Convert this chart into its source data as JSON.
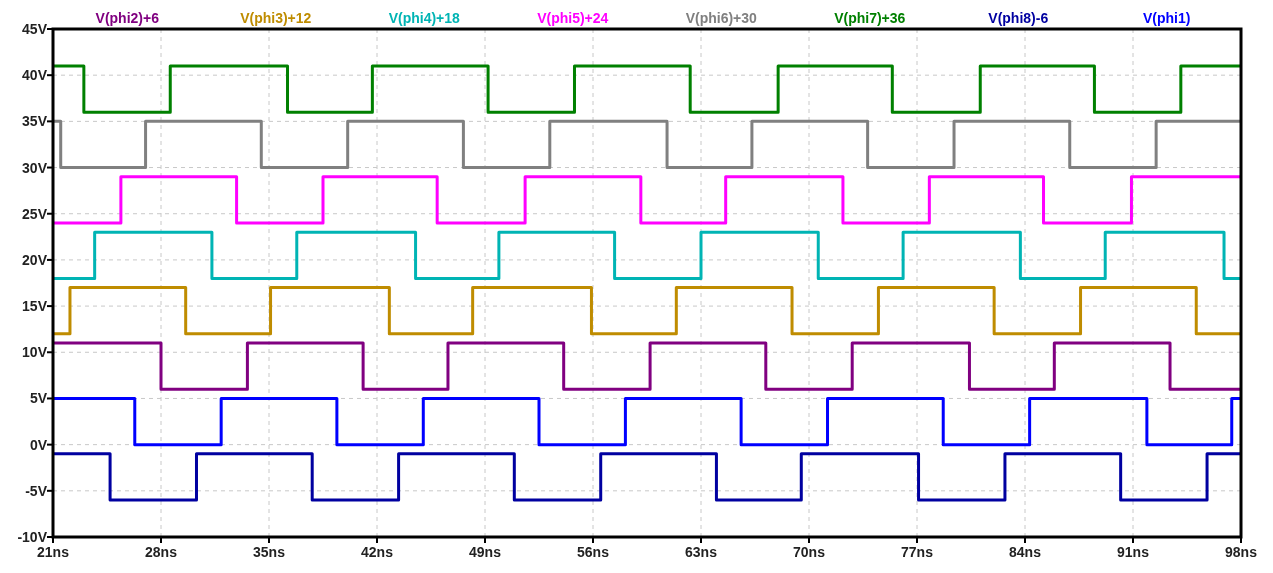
{
  "chart_data": {
    "type": "step",
    "xlim": [
      21,
      98
    ],
    "ylim": [
      -10,
      45
    ],
    "xticks": [
      {
        "value": 21,
        "label": "21ns"
      },
      {
        "value": 28,
        "label": "28ns"
      },
      {
        "value": 35,
        "label": "35ns"
      },
      {
        "value": 42,
        "label": "42ns"
      },
      {
        "value": 49,
        "label": "49ns"
      },
      {
        "value": 56,
        "label": "56ns"
      },
      {
        "value": 63,
        "label": "63ns"
      },
      {
        "value": 70,
        "label": "70ns"
      },
      {
        "value": 77,
        "label": "77ns"
      },
      {
        "value": 84,
        "label": "84ns"
      },
      {
        "value": 91,
        "label": "91ns"
      },
      {
        "value": 98,
        "label": "98ns"
      }
    ],
    "yticks": [
      {
        "value": -10,
        "label": "-10V"
      },
      {
        "value": -5,
        "label": "-5V"
      },
      {
        "value": 0,
        "label": "0V"
      },
      {
        "value": 5,
        "label": "5V"
      },
      {
        "value": 10,
        "label": "10V"
      },
      {
        "value": 15,
        "label": "15V"
      },
      {
        "value": 20,
        "label": "20V"
      },
      {
        "value": 25,
        "label": "25V"
      },
      {
        "value": 30,
        "label": "30V"
      },
      {
        "value": 35,
        "label": "35V"
      },
      {
        "value": 40,
        "label": "40V"
      },
      {
        "value": 45,
        "label": "45V"
      }
    ],
    "grid": true,
    "legend": "top",
    "line_style": "solid",
    "series": [
      {
        "name": "V(phi2)+6",
        "color": "#800080",
        "x": [
          21,
          28.0,
          33.6,
          41.1,
          46.6,
          54.1,
          59.7,
          67.2,
          72.8,
          80.4,
          85.9,
          93.4,
          98
        ],
        "values": [
          11,
          6,
          11,
          6,
          11,
          6,
          11,
          6,
          11,
          6,
          11,
          6,
          6
        ]
      },
      {
        "name": "V(phi3)+12",
        "color": "#bf8c00",
        "x": [
          21,
          22.1,
          29.6,
          35.1,
          42.8,
          48.2,
          55.9,
          61.4,
          68.9,
          74.5,
          82.0,
          87.6,
          95.1,
          98
        ],
        "values": [
          12,
          17,
          12,
          17,
          12,
          17,
          12,
          17,
          12,
          17,
          12,
          17,
          12,
          12
        ]
      },
      {
        "name": "V(phi4)+18",
        "color": "#00b4b4",
        "x": [
          21,
          23.7,
          31.3,
          36.8,
          44.5,
          49.9,
          57.4,
          63.0,
          70.6,
          76.1,
          83.7,
          89.2,
          96.9,
          98
        ],
        "values": [
          18,
          23,
          18,
          23,
          18,
          23,
          18,
          23,
          18,
          23,
          18,
          23,
          18,
          18
        ]
      },
      {
        "name": "V(phi5)+24",
        "color": "#ff00ff",
        "x": [
          21,
          25.4,
          32.9,
          38.5,
          45.9,
          51.6,
          59.1,
          64.6,
          72.2,
          77.8,
          85.2,
          90.9,
          98
        ],
        "values": [
          24,
          29,
          24,
          29,
          24,
          29,
          24,
          29,
          24,
          29,
          24,
          29,
          29
        ]
      },
      {
        "name": "V(phi6)+30",
        "color": "#808080",
        "x": [
          21,
          21.5,
          27.0,
          34.5,
          40.1,
          47.6,
          53.2,
          60.8,
          66.3,
          73.8,
          79.4,
          86.9,
          92.5,
          98
        ],
        "values": [
          35,
          30,
          35,
          30,
          35,
          30,
          35,
          30,
          35,
          30,
          35,
          30,
          35,
          35
        ]
      },
      {
        "name": "V(phi7)+36",
        "color": "#008000",
        "x": [
          21,
          23.0,
          28.6,
          36.2,
          41.7,
          49.2,
          54.8,
          62.3,
          68.0,
          75.4,
          81.1,
          88.5,
          94.1,
          98
        ],
        "values": [
          41,
          36,
          41,
          36,
          41,
          36,
          41,
          36,
          41,
          36,
          41,
          36,
          41,
          41
        ]
      },
      {
        "name": "V(phi8)-6",
        "color": "#0000a0",
        "x": [
          21,
          24.7,
          30.3,
          37.8,
          43.4,
          50.9,
          56.5,
          64.0,
          69.5,
          77.1,
          82.7,
          90.2,
          95.8,
          98
        ],
        "values": [
          -1,
          -6,
          -1,
          -6,
          -1,
          -6,
          -1,
          -6,
          -1,
          -6,
          -1,
          -6,
          -1,
          -1
        ]
      },
      {
        "name": "V(phi1)",
        "color": "#0000ff",
        "x": [
          21,
          26.3,
          31.9,
          39.4,
          45.0,
          52.5,
          58.1,
          65.6,
          71.2,
          78.7,
          84.3,
          91.9,
          97.4,
          98
        ],
        "values": [
          5,
          0,
          5,
          0,
          5,
          0,
          5,
          0,
          5,
          0,
          5,
          0,
          5,
          5
        ]
      }
    ]
  }
}
